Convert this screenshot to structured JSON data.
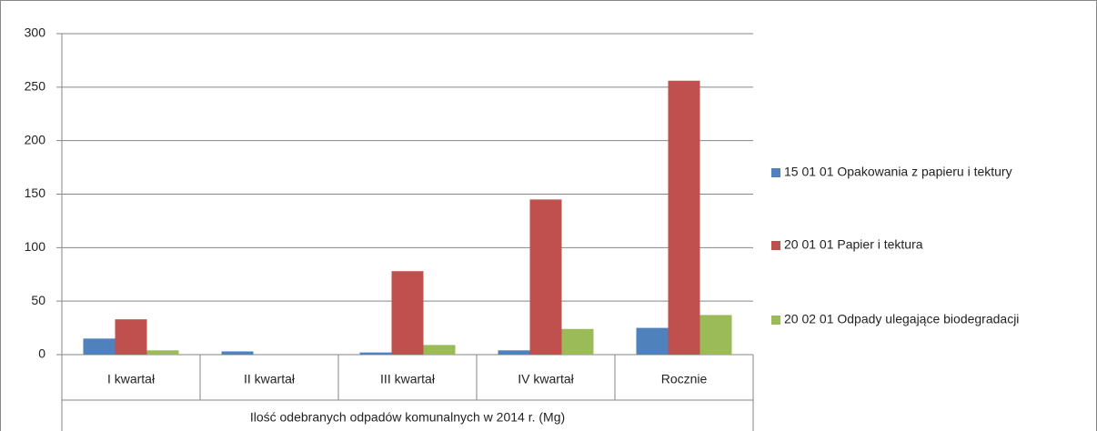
{
  "chart_data": {
    "type": "bar",
    "categories": [
      "I kwartał",
      "II kwartał",
      "III kwartał",
      "IV kwartał",
      "Rocznie"
    ],
    "xlabel": "Ilość odebranych odpadów komunalnych w 2014 r. (Mg)",
    "series": [
      {
        "name": "15 01 01 Opakowania z papieru i tektury",
        "color": "#4f81bd",
        "values": [
          15,
          3,
          2,
          4,
          25
        ]
      },
      {
        "name": "20 01 01 Papier i tektura",
        "color": "#c0504d",
        "values": [
          33,
          0,
          78,
          145,
          256
        ]
      },
      {
        "name": "20 02 01 Odpady ulegające biodegradacji",
        "color": "#9bbb59",
        "values": [
          4,
          0,
          9,
          24,
          37
        ]
      }
    ],
    "ylim": [
      0,
      300
    ],
    "yticks": [
      0,
      50,
      100,
      150,
      200,
      250,
      300
    ],
    "grid": true,
    "legend": "right"
  }
}
